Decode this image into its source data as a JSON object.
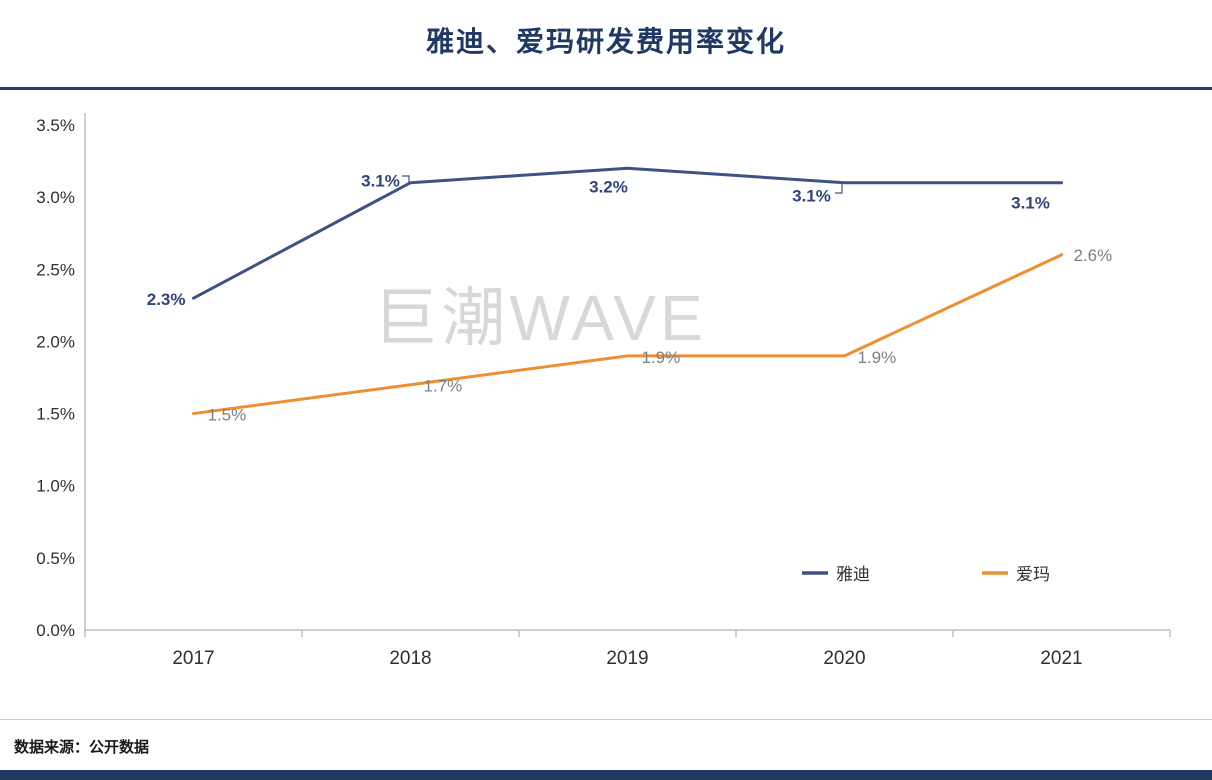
{
  "page": {
    "title": "雅迪、爱玛研发费用率变化",
    "watermark": "巨潮WAVE",
    "source_note": "数据来源：公开数据"
  },
  "colors": {
    "title_navy": "#1F3864",
    "series_navy": "#3E5284",
    "series_orange": "#EE8F31",
    "data_label_gray": "#808080",
    "axis_gray": "#BFBFBF",
    "watermark_gray": "#D2D2D2",
    "bottom_bar_navy": "#1F3864"
  },
  "chart_data": {
    "type": "line",
    "title": "雅迪、爱玛研发费用率变化",
    "categories": [
      "2017",
      "2018",
      "2019",
      "2020",
      "2021"
    ],
    "series": [
      {
        "name": "雅迪",
        "color": "#3E5284",
        "values": [
          2.3,
          3.1,
          3.2,
          3.1,
          3.1
        ],
        "labels": [
          "2.3%",
          "3.1%",
          "3.2%",
          "3.1%",
          "3.1%"
        ]
      },
      {
        "name": "爱玛",
        "color": "#EE8F31",
        "values": [
          1.5,
          1.7,
          1.9,
          1.9,
          2.6
        ],
        "labels": [
          "1.5%",
          "1.7%",
          "1.9%",
          "1.9%",
          "2.6%"
        ]
      }
    ],
    "ylim": [
      0,
      3.5
    ],
    "ytick_step": 0.5,
    "ytick_labels": [
      "0.0%",
      "0.5%",
      "1.0%",
      "1.5%",
      "2.0%",
      "2.5%",
      "3.0%",
      "3.5%"
    ],
    "xlabel": "",
    "ylabel": "",
    "grid": false,
    "legend_position": "bottom-right-inside"
  }
}
